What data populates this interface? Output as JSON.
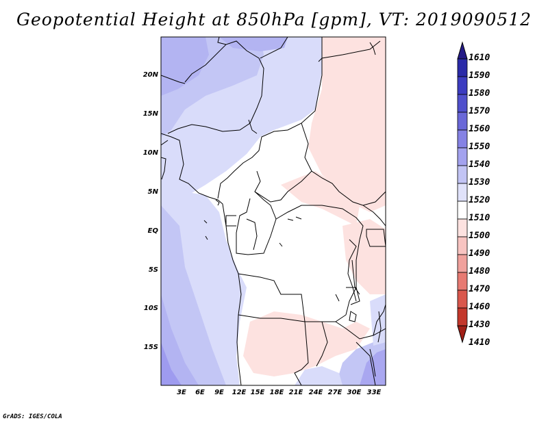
{
  "title": "Geopotential Height at 850hPa [gpm], VT: 2019090512",
  "footer": "GrADS: IGES/COLA",
  "lat_labels": [
    "20N",
    "15N",
    "10N",
    "5N",
    "EQ",
    "5S",
    "10S",
    "15S"
  ],
  "lon_labels": [
    "3E",
    "6E",
    "9E",
    "12E",
    "15E",
    "18E",
    "21E",
    "24E",
    "27E",
    "30E",
    "33E"
  ],
  "colorbar": {
    "levels": [
      "1610",
      "1590",
      "1580",
      "1570",
      "1560",
      "1550",
      "1540",
      "1530",
      "1520",
      "1510",
      "1500",
      "1490",
      "1480",
      "1470",
      "1460",
      "1430",
      "1410"
    ],
    "colors": [
      "#241a86",
      "#2a2aa8",
      "#3c3cc0",
      "#5050cc",
      "#6a68d8",
      "#8582e4",
      "#a3a2ee",
      "#c2c4f4",
      "#e0e2fa",
      "#ffffff",
      "#fde2e0",
      "#f8c4c1",
      "#f0a19c",
      "#e77a72",
      "#d9574c",
      "#c3372b",
      "#a11f16"
    ]
  }
}
